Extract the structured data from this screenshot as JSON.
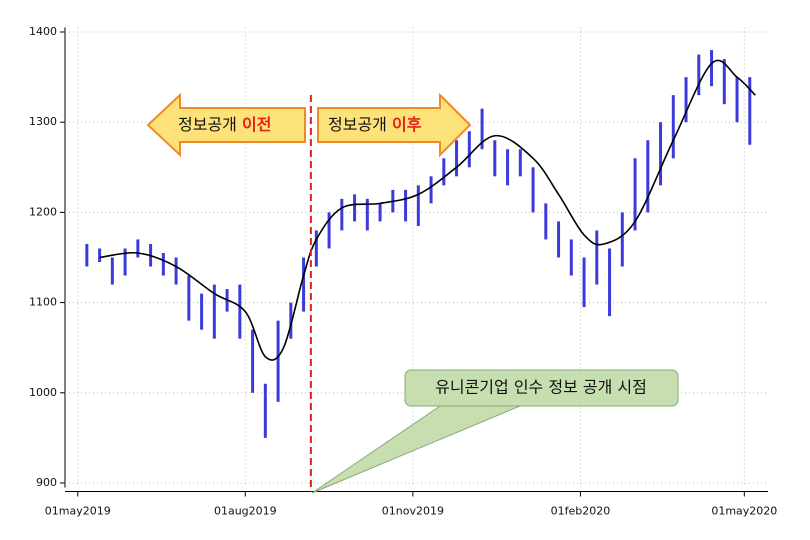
{
  "chart_data": {
    "type": "range",
    "x": [
      "2019-05-06",
      "2019-05-13",
      "2019-05-20",
      "2019-05-27",
      "2019-06-03",
      "2019-06-10",
      "2019-06-17",
      "2019-06-24",
      "2019-07-01",
      "2019-07-08",
      "2019-07-15",
      "2019-07-22",
      "2019-07-29",
      "2019-08-05",
      "2019-08-12",
      "2019-08-19",
      "2019-08-26",
      "2019-09-02",
      "2019-09-09",
      "2019-09-16",
      "2019-09-23",
      "2019-09-30",
      "2019-10-07",
      "2019-10-14",
      "2019-10-21",
      "2019-10-28",
      "2019-11-04",
      "2019-11-11",
      "2019-11-18",
      "2019-11-25",
      "2019-12-02",
      "2019-12-09",
      "2019-12-16",
      "2019-12-23",
      "2019-12-30",
      "2020-01-06",
      "2020-01-13",
      "2020-01-20",
      "2020-01-27",
      "2020-02-03",
      "2020-02-10",
      "2020-02-17",
      "2020-02-24",
      "2020-03-02",
      "2020-03-09",
      "2020-03-16",
      "2020-03-23",
      "2020-03-30",
      "2020-04-06",
      "2020-04-13",
      "2020-04-20",
      "2020-04-27",
      "2020-05-04"
    ],
    "low": [
      1140,
      1145,
      1120,
      1130,
      1150,
      1140,
      1130,
      1120,
      1080,
      1070,
      1060,
      1090,
      1060,
      1000,
      950,
      990,
      1060,
      1090,
      1140,
      1160,
      1180,
      1190,
      1180,
      1190,
      1200,
      1190,
      1185,
      1210,
      1230,
      1240,
      1250,
      1270,
      1240,
      1230,
      1240,
      1200,
      1170,
      1150,
      1130,
      1095,
      1120,
      1085,
      1140,
      1180,
      1200,
      1230,
      1260,
      1300,
      1330,
      1340,
      1320,
      1300,
      1275
    ],
    "high": [
      1165,
      1160,
      1150,
      1160,
      1170,
      1165,
      1155,
      1150,
      1130,
      1110,
      1120,
      1115,
      1120,
      1070,
      1010,
      1080,
      1100,
      1150,
      1180,
      1200,
      1215,
      1220,
      1215,
      1210,
      1225,
      1225,
      1230,
      1240,
      1260,
      1280,
      1290,
      1315,
      1280,
      1270,
      1270,
      1250,
      1210,
      1190,
      1170,
      1150,
      1180,
      1160,
      1200,
      1260,
      1280,
      1300,
      1330,
      1350,
      1375,
      1380,
      1370,
      1350,
      1350
    ],
    "color": "#3b3bdb",
    "smooth": {
      "x": [
        "2019-05-13",
        "2019-06-03",
        "2019-06-24",
        "2019-07-15",
        "2019-08-01",
        "2019-08-12",
        "2019-08-22",
        "2019-09-02",
        "2019-09-09",
        "2019-09-23",
        "2019-10-14",
        "2019-11-04",
        "2019-11-25",
        "2019-12-16",
        "2020-01-06",
        "2020-01-20",
        "2020-02-03",
        "2020-02-14",
        "2020-03-02",
        "2020-03-23",
        "2020-04-13",
        "2020-04-27",
        "2020-05-07"
      ],
      "values": [
        1150,
        1155,
        1140,
        1110,
        1090,
        1040,
        1050,
        1130,
        1170,
        1205,
        1210,
        1220,
        1250,
        1285,
        1260,
        1220,
        1175,
        1165,
        1190,
        1280,
        1365,
        1350,
        1330
      ],
      "color": "#000000"
    },
    "xlim": [
      "2019-04-24",
      "2020-05-14"
    ],
    "xticks": [
      {
        "value": "2019-05-01",
        "label": "01may2019"
      },
      {
        "value": "2019-08-01",
        "label": "01aug2019"
      },
      {
        "value": "2019-11-01",
        "label": "01nov2019"
      },
      {
        "value": "2020-02-01",
        "label": "01feb2020"
      },
      {
        "value": "2020-05-01",
        "label": "01may2020"
      }
    ],
    "ylim": [
      895,
      1405
    ],
    "yticks": [
      900,
      1000,
      1100,
      1200,
      1300,
      1400
    ],
    "grid": true,
    "event_x": "2019-09-06",
    "label_before": "정보공개",
    "label_before_em": "이전",
    "label_after": "정보공개",
    "label_after_em": "이후",
    "callout": "유니콘기업 인수 정보 공개 시점"
  }
}
